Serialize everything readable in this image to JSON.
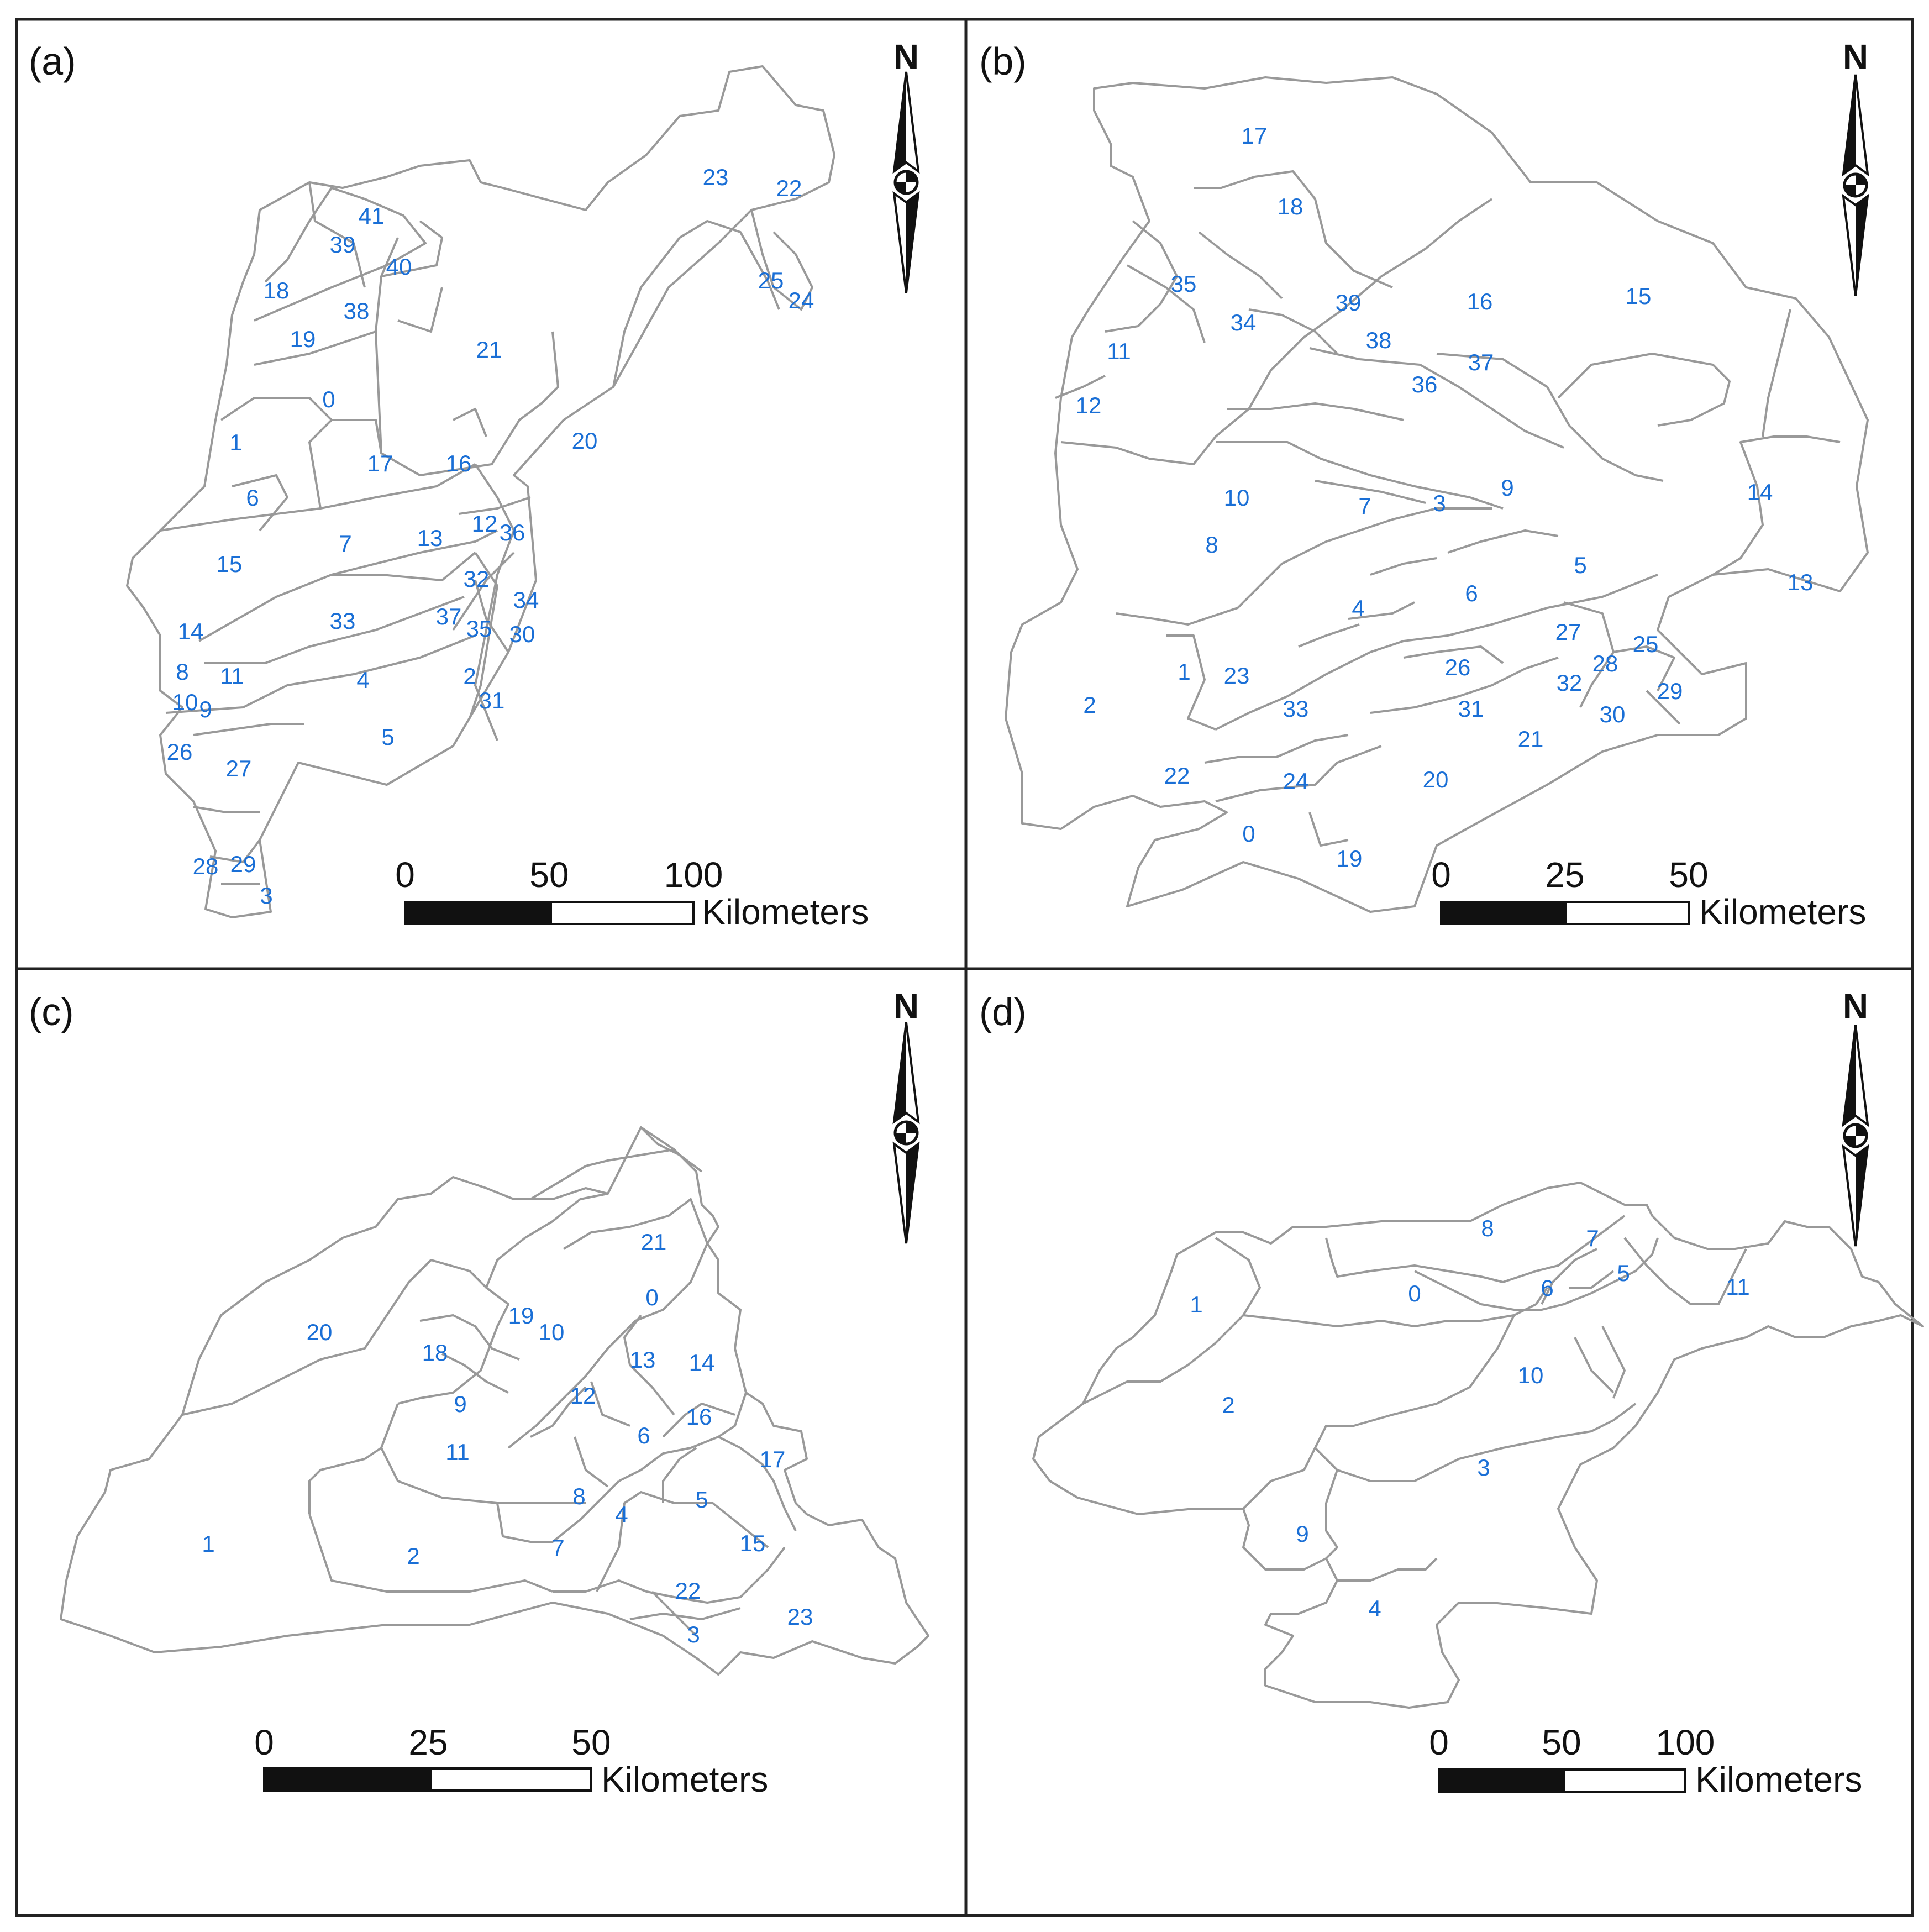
{
  "figure": {
    "panels": [
      {
        "id": "a",
        "label": "(a)",
        "north_label": "N",
        "scale": {
          "ticks": [
            "0",
            "50",
            "100"
          ],
          "unit": "Kilometers"
        },
        "subbasin_labels": [
          "0",
          "1",
          "2",
          "3",
          "4",
          "5",
          "6",
          "7",
          "8",
          "9",
          "10",
          "11",
          "12",
          "13",
          "14",
          "15",
          "16",
          "17",
          "18",
          "19",
          "20",
          "21",
          "22",
          "23",
          "24",
          "25",
          "26",
          "27",
          "28",
          "29",
          "30",
          "31",
          "32",
          "33",
          "34",
          "35",
          "36",
          "37",
          "38",
          "39",
          "40",
          "41"
        ]
      },
      {
        "id": "b",
        "label": "(b)",
        "north_label": "N",
        "scale": {
          "ticks": [
            "0",
            "25",
            "50"
          ],
          "unit": "Kilometers"
        },
        "subbasin_labels": [
          "0",
          "1",
          "2",
          "3",
          "4",
          "5",
          "6",
          "7",
          "8",
          "9",
          "10",
          "11",
          "12",
          "13",
          "14",
          "15",
          "16",
          "17",
          "18",
          "19",
          "20",
          "21",
          "22",
          "23",
          "24",
          "25",
          "26",
          "27",
          "28",
          "29",
          "30",
          "31",
          "32",
          "33",
          "34",
          "35",
          "36",
          "37",
          "38",
          "39"
        ]
      },
      {
        "id": "c",
        "label": "(c)",
        "north_label": "N",
        "scale": {
          "ticks": [
            "0",
            "25",
            "50"
          ],
          "unit": "Kilometers"
        },
        "subbasin_labels": [
          "0",
          "1",
          "2",
          "3",
          "4",
          "5",
          "6",
          "7",
          "8",
          "9",
          "10",
          "11",
          "12",
          "13",
          "14",
          "15",
          "16",
          "17",
          "18",
          "19",
          "20",
          "21",
          "22",
          "23"
        ]
      },
      {
        "id": "d",
        "label": "(d)",
        "north_label": "N",
        "scale": {
          "ticks": [
            "0",
            "50",
            "100"
          ],
          "unit": "Kilometers"
        },
        "subbasin_labels": [
          "0",
          "1",
          "2",
          "3",
          "4",
          "5",
          "6",
          "7",
          "8",
          "9",
          "10",
          "11"
        ]
      }
    ],
    "colors": {
      "boundary": "#999999",
      "label": "#1a6fd6",
      "frame": "#222222",
      "text": "#111111"
    }
  }
}
